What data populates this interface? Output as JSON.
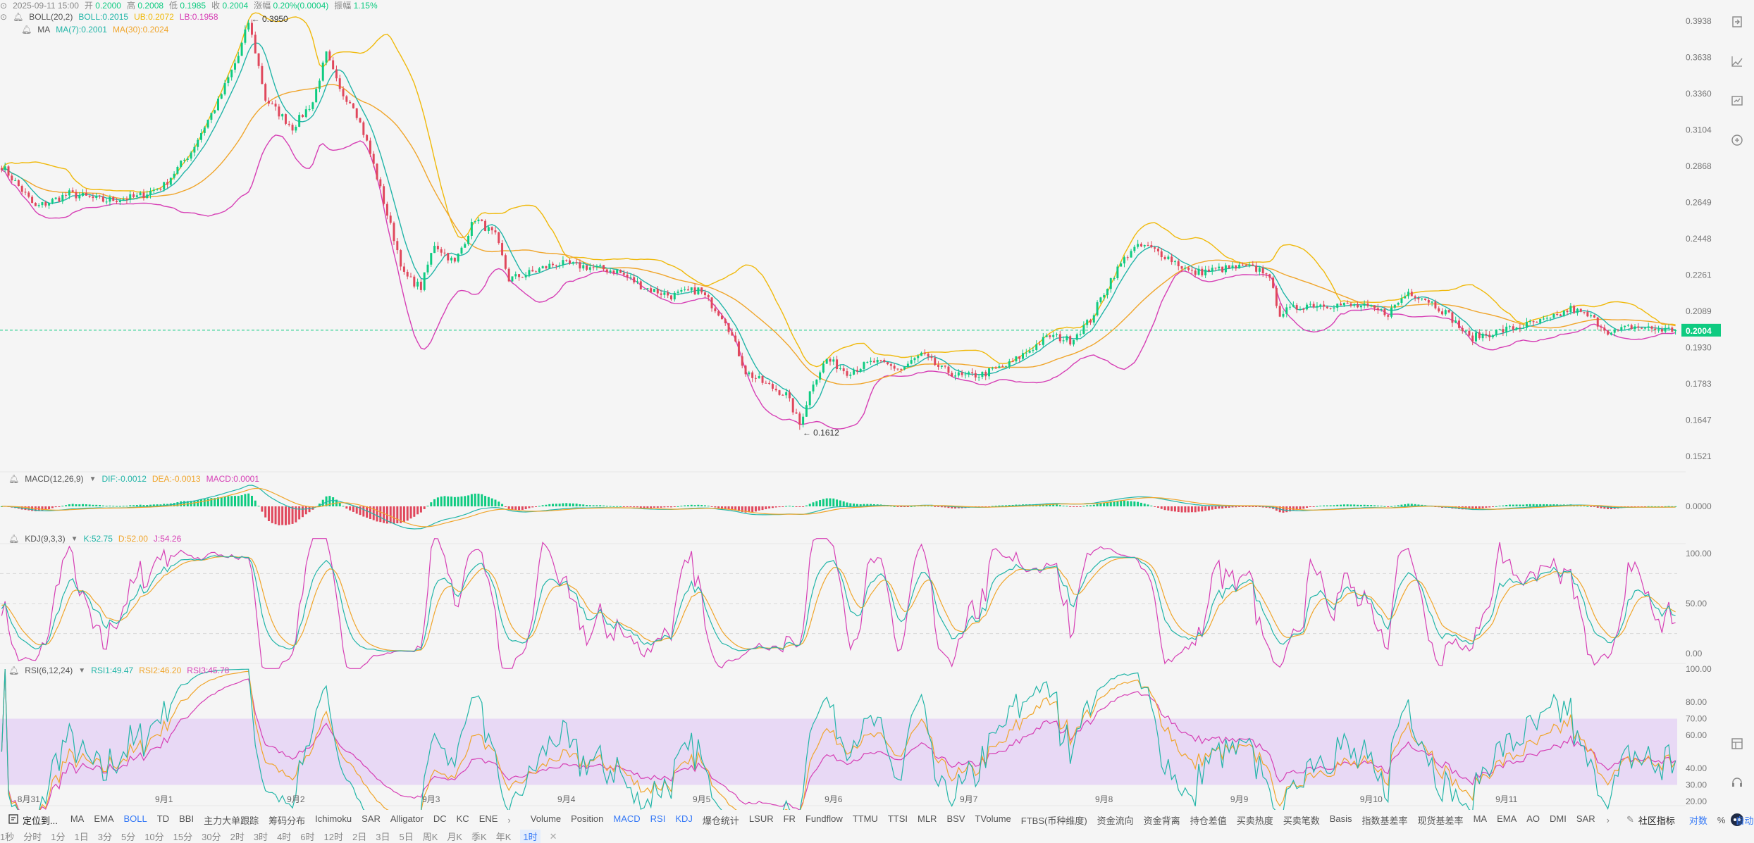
{
  "header": {
    "datetime": "2025-09-11 15:00",
    "open_label": "开",
    "open": "0.2000",
    "high_label": "高",
    "high": "0.2008",
    "low_label": "低",
    "low": "0.1985",
    "close_label": "收",
    "close": "0.2004",
    "change_label": "涨幅",
    "change": "0.20%(0.0004)",
    "amp_label": "振幅",
    "amp": "1.15%"
  },
  "legends": {
    "boll": {
      "name": "BOLL(20,2)",
      "v1": "BOLL:0.2015",
      "v2": "UB:0.2072",
      "v3": "LB:0.1958"
    },
    "ma": {
      "name": "MA",
      "v1": "MA(7):0.2001",
      "v2": "MA(30):0.2024"
    },
    "macd": {
      "name": "MACD(12,26,9)",
      "v1": "DIF:-0.0012",
      "v2": "DEA:-0.0013",
      "v3": "MACD:0.0001"
    },
    "kdj": {
      "name": "KDJ(9,3,3)",
      "v1": "K:52.75",
      "v2": "D:52.00",
      "v3": "J:54.26"
    },
    "rsi": {
      "name": "RSI(6,12,24)",
      "v1": "RSI1:49.47",
      "v2": "RSI2:46.20",
      "v3": "RSI3:45.78"
    }
  },
  "price_axis": [
    "0.3938",
    "0.3638",
    "0.3360",
    "0.3104",
    "0.2868",
    "0.2649",
    "0.2448",
    "0.2261",
    "0.2089",
    "0.1930",
    "0.1783",
    "0.1647",
    "0.1521"
  ],
  "macd_axis": [
    "0.0000"
  ],
  "kdj_axis": [
    "100.00",
    "50.00",
    "0.00"
  ],
  "rsi_axis": [
    "100.00",
    "80.00",
    "70.00",
    "60.00",
    "40.00",
    "30.00",
    "20.00"
  ],
  "x_axis": [
    "8月31",
    "9月1",
    "9月2",
    "9月3",
    "9月4",
    "9月5",
    "9月6",
    "9月7",
    "9月8",
    "9月9",
    "9月10",
    "9月11"
  ],
  "annotations": {
    "high": "0.3950",
    "low": "0.1612"
  },
  "current_price": "0.2004",
  "colors": {
    "up": "#0ecb81",
    "down": "#e0475c",
    "boll_upper": "#f0b90b",
    "boll_lower": "#d63fb5",
    "ma7": "#22b5a8",
    "ma30": "#f0a52b",
    "rsi_band": "#e5d3f5",
    "accent": "#3478f6"
  },
  "bottom_bar": {
    "locate": "定位到...",
    "main_indicators": [
      "MA",
      "EMA",
      "BOLL",
      "TD",
      "BBI",
      "主力大单跟踪",
      "筹码分布",
      "Ichimoku",
      "SAR",
      "Alligator",
      "DC",
      "KC",
      "ENE"
    ],
    "sub_indicators": [
      "Volume",
      "Position",
      "MACD",
      "RSI",
      "KDJ",
      "爆仓统计",
      "LSUR",
      "FR",
      "Fundflow",
      "TTMU",
      "TTSI",
      "MLR",
      "BSV",
      "TVolume",
      "FTBS(币种维度)",
      "资金流向",
      "资金背离",
      "持仓差值",
      "买卖热度",
      "买卖笔数",
      "Basis",
      "指数基差率",
      "现货基差率",
      "MA",
      "EMA",
      "AO",
      "DMI",
      "SAR"
    ],
    "active": [
      "BOLL",
      "MACD",
      "RSI",
      "KDJ"
    ],
    "community": "社区指标",
    "log": "对数",
    "pct": "%",
    "auto": "自动"
  },
  "timeframes": {
    "items": [
      "1秒",
      "分时",
      "1分",
      "1日",
      "3分",
      "5分",
      "10分",
      "15分",
      "30分",
      "2时",
      "3时",
      "4时",
      "6时",
      "12时",
      "2日",
      "3日",
      "5日",
      "周K",
      "月K",
      "季K",
      "年K",
      "1时"
    ],
    "active": "1时"
  },
  "chart_data": {
    "type": "candlestick",
    "symbol_interval": "1时",
    "x_ticks": [
      "8月31",
      "9月1",
      "9月2",
      "9月3",
      "9月4",
      "9月5",
      "9月6",
      "9月7",
      "9月8",
      "9月9",
      "9月10",
      "9月11"
    ],
    "anchors": [
      [
        0,
        0.287
      ],
      [
        10,
        0.262
      ],
      [
        20,
        0.27
      ],
      [
        30,
        0.266
      ],
      [
        40,
        0.268
      ],
      [
        48,
        0.275
      ],
      [
        56,
        0.296
      ],
      [
        64,
        0.33
      ],
      [
        70,
        0.365
      ],
      [
        73,
        0.393
      ],
      [
        78,
        0.332
      ],
      [
        86,
        0.312
      ],
      [
        92,
        0.33
      ],
      [
        96,
        0.366
      ],
      [
        100,
        0.338
      ],
      [
        104,
        0.328
      ],
      [
        108,
        0.302
      ],
      [
        114,
        0.258
      ],
      [
        119,
        0.226
      ],
      [
        124,
        0.22
      ],
      [
        128,
        0.242
      ],
      [
        134,
        0.232
      ],
      [
        140,
        0.256
      ],
      [
        146,
        0.246
      ],
      [
        150,
        0.224
      ],
      [
        156,
        0.227
      ],
      [
        164,
        0.232
      ],
      [
        174,
        0.23
      ],
      [
        182,
        0.228
      ],
      [
        190,
        0.22
      ],
      [
        198,
        0.216
      ],
      [
        206,
        0.219
      ],
      [
        214,
        0.205
      ],
      [
        220,
        0.183
      ],
      [
        226,
        0.178
      ],
      [
        232,
        0.174
      ],
      [
        236,
        0.163
      ],
      [
        240,
        0.179
      ],
      [
        244,
        0.188
      ],
      [
        250,
        0.183
      ],
      [
        258,
        0.187
      ],
      [
        266,
        0.184
      ],
      [
        272,
        0.19
      ],
      [
        278,
        0.184
      ],
      [
        284,
        0.181
      ],
      [
        290,
        0.182
      ],
      [
        298,
        0.186
      ],
      [
        304,
        0.192
      ],
      [
        310,
        0.198
      ],
      [
        316,
        0.196
      ],
      [
        322,
        0.205
      ],
      [
        328,
        0.224
      ],
      [
        334,
        0.239
      ],
      [
        338,
        0.241
      ],
      [
        344,
        0.236
      ],
      [
        352,
        0.227
      ],
      [
        360,
        0.229
      ],
      [
        368,
        0.23
      ],
      [
        374,
        0.228
      ],
      [
        378,
        0.208
      ],
      [
        386,
        0.212
      ],
      [
        394,
        0.212
      ],
      [
        402,
        0.211
      ],
      [
        410,
        0.208
      ],
      [
        416,
        0.218
      ],
      [
        422,
        0.214
      ],
      [
        428,
        0.207
      ],
      [
        434,
        0.197
      ],
      [
        440,
        0.199
      ],
      [
        446,
        0.201
      ],
      [
        452,
        0.203
      ],
      [
        458,
        0.205
      ],
      [
        464,
        0.21
      ],
      [
        470,
        0.206
      ],
      [
        476,
        0.199
      ],
      [
        482,
        0.202
      ],
      [
        488,
        0.201
      ],
      [
        495,
        0.2004
      ]
    ],
    "n": 496,
    "price_range": [
      0.1521,
      0.3938
    ],
    "price_high": 0.395,
    "price_low": 0.1612,
    "current_price": 0.2004,
    "latest": {
      "open": 0.2,
      "high": 0.2008,
      "low": 0.1985,
      "close": 0.2004
    },
    "indicators": {
      "boll": {
        "period": 20,
        "mult": 2
      },
      "ma": [
        7,
        30
      ],
      "macd": [
        12,
        26,
        9
      ],
      "kdj": [
        9,
        3,
        3
      ],
      "rsi": [
        6,
        12,
        24
      ]
    },
    "kdj_range": [
      0,
      100
    ],
    "rsi_range": [
      20,
      100
    ],
    "rsi_band": [
      30,
      70
    ]
  }
}
